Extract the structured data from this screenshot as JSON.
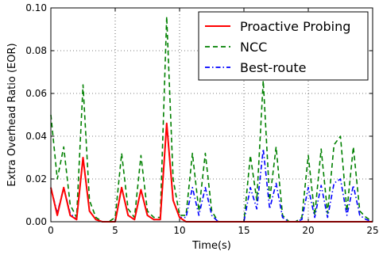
{
  "chart_data": {
    "type": "line",
    "xlabel": "Time(s)",
    "ylabel": "Extra Overhead Ratio (EOR)",
    "xlim": [
      0,
      25
    ],
    "ylim": [
      0,
      0.1
    ],
    "xticks": [
      0,
      5,
      10,
      15,
      20,
      25
    ],
    "yticks": [
      0.0,
      0.02,
      0.04,
      0.06,
      0.08,
      0.1
    ],
    "xtick_labels": [
      "0",
      "5",
      "10",
      "15",
      "20",
      "25"
    ],
    "ytick_labels": [
      "0.00",
      "0.02",
      "0.04",
      "0.06",
      "0.08",
      "0.10"
    ],
    "grid": true,
    "legend_position": "top-right",
    "series": [
      {
        "name": "Proactive Probing",
        "color": "#ff0000",
        "style": "solid",
        "x": [
          0,
          0.5,
          1,
          1.5,
          2,
          2.5,
          3,
          3.5,
          4,
          4.5,
          5,
          5.5,
          6,
          6.5,
          7,
          7.5,
          8,
          8.5,
          9,
          9.5,
          10,
          10.5,
          11,
          11.5,
          12,
          12.5,
          13,
          13.5,
          14,
          14.5,
          15,
          15.5,
          16,
          16.5,
          17,
          17.5,
          18,
          18.5,
          19,
          19.5,
          20,
          20.5,
          21,
          21.5,
          22,
          22.5,
          23,
          23.5,
          24,
          24.5,
          25
        ],
        "y": [
          0.016,
          0.003,
          0.016,
          0.003,
          0.001,
          0.03,
          0.005,
          0.001,
          0,
          0,
          0,
          0.016,
          0.003,
          0.001,
          0.015,
          0.003,
          0.001,
          0.001,
          0.046,
          0.01,
          0.002,
          0,
          0,
          0,
          0,
          0,
          0,
          0,
          0,
          0,
          0,
          0,
          0,
          0,
          0,
          0,
          0,
          0,
          0,
          0,
          0,
          0,
          0,
          0,
          0,
          0,
          0,
          0,
          0,
          0,
          0
        ]
      },
      {
        "name": "NCC",
        "color": "#008000",
        "style": "dashed",
        "x": [
          0,
          0.5,
          1,
          1.5,
          2,
          2.5,
          3,
          3.5,
          4,
          4.5,
          5,
          5.5,
          6,
          6.5,
          7,
          7.5,
          8,
          8.5,
          9,
          9.5,
          10,
          10.5,
          11,
          11.5,
          12,
          12.5,
          13,
          13.5,
          14,
          14.5,
          15,
          15.5,
          16,
          16.5,
          17,
          17.5,
          18,
          18.5,
          19,
          19.5,
          20,
          20.5,
          21,
          21.5,
          22,
          22.5,
          23,
          23.5,
          24,
          24.5,
          25
        ],
        "y": [
          0.05,
          0.02,
          0.035,
          0.008,
          0.002,
          0.064,
          0.01,
          0.002,
          0,
          0,
          0.002,
          0.032,
          0.006,
          0.002,
          0.031,
          0.005,
          0.002,
          0.002,
          0.096,
          0.02,
          0.003,
          0.003,
          0.032,
          0.005,
          0.032,
          0.005,
          0,
          0,
          0,
          0,
          0,
          0.031,
          0.01,
          0.066,
          0.01,
          0.035,
          0.003,
          0,
          0,
          0.002,
          0.031,
          0.003,
          0.034,
          0.004,
          0.036,
          0.04,
          0.005,
          0.035,
          0.005,
          0.002,
          0
        ]
      },
      {
        "name": "Best-route",
        "color": "#0000ff",
        "style": "dashdot",
        "x": [
          0,
          0.5,
          1,
          1.5,
          2,
          2.5,
          3,
          3.5,
          4,
          4.5,
          5,
          5.5,
          6,
          6.5,
          7,
          7.5,
          8,
          8.5,
          9,
          9.5,
          10,
          10.5,
          11,
          11.5,
          12,
          12.5,
          13,
          13.5,
          14,
          14.5,
          15,
          15.5,
          16,
          16.5,
          17,
          17.5,
          18,
          18.5,
          19,
          19.5,
          20,
          20.5,
          21,
          21.5,
          22,
          22.5,
          23,
          23.5,
          24,
          24.5,
          25
        ],
        "y": [
          0.016,
          0.004,
          0.016,
          0.004,
          0.001,
          0.03,
          0.005,
          0.001,
          0,
          0,
          0,
          0.016,
          0.003,
          0.001,
          0.015,
          0.003,
          0.001,
          0.001,
          0.046,
          0.01,
          0.002,
          0.002,
          0.016,
          0.003,
          0.016,
          0.003,
          0,
          0,
          0,
          0,
          0,
          0.016,
          0.006,
          0.034,
          0.006,
          0.018,
          0.002,
          0,
          0,
          0.001,
          0.016,
          0.002,
          0.017,
          0.002,
          0.018,
          0.02,
          0.003,
          0.017,
          0.003,
          0.001,
          0
        ]
      }
    ]
  }
}
